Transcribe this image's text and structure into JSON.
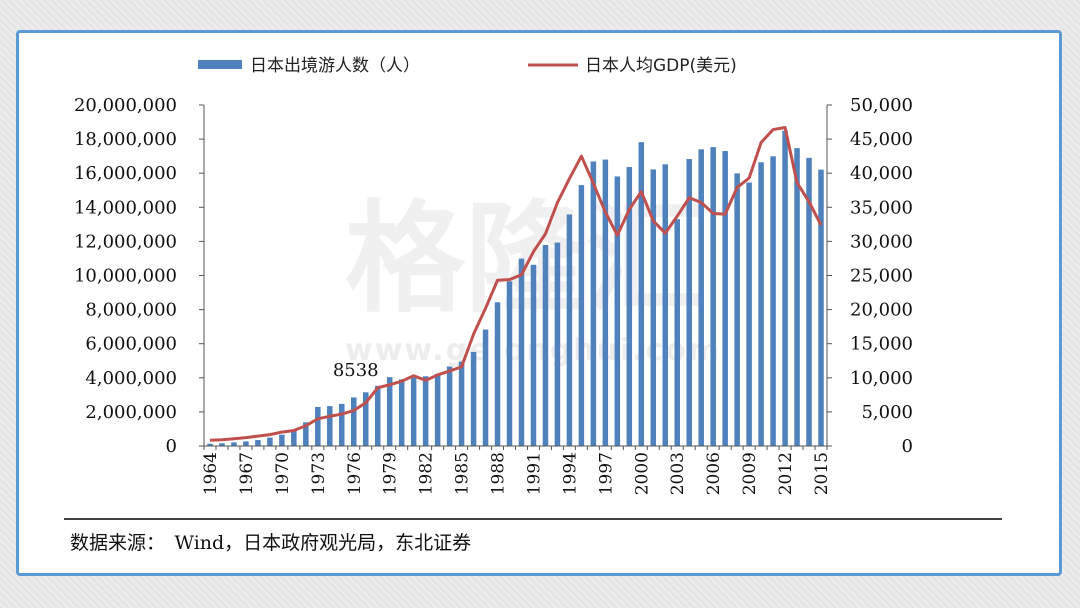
{
  "chart_data": {
    "type": "bar+line",
    "title": "",
    "legend": [
      {
        "name": "日本出境游人数（人）",
        "kind": "bar",
        "color": "#4f81bd"
      },
      {
        "name": "日本人均GDP(美元)",
        "kind": "line",
        "color": "#c0504d"
      }
    ],
    "x_start": 1964,
    "x_end": 2015,
    "x_tick_labels": [
      "1964",
      "1967",
      "1970",
      "1973",
      "1976",
      "1979",
      "1982",
      "1985",
      "1988",
      "1991",
      "1994",
      "1997",
      "2000",
      "2003",
      "2006",
      "2009",
      "2012",
      "2015"
    ],
    "y_left": {
      "min": 0,
      "max": 20000000,
      "ticks": [
        "0",
        "2,000,000",
        "4,000,000",
        "6,000,000",
        "8,000,000",
        "10,000,000",
        "12,000,000",
        "14,000,000",
        "16,000,000",
        "18,000,000",
        "20,000,000"
      ]
    },
    "y_right": {
      "min": 0,
      "max": 50000,
      "ticks": [
        "0",
        "5,000",
        "10,000",
        "15,000",
        "20,000",
        "25,000",
        "30,000",
        "35,000",
        "40,000",
        "45,000",
        "50,000"
      ]
    },
    "series": [
      {
        "name": "日本出境游人数（人）",
        "axis": "left",
        "values": [
          130000,
          160000,
          210000,
          270000,
          350000,
          490000,
          660000,
          960000,
          1390000,
          2290000,
          2340000,
          2470000,
          2850000,
          3150000,
          3530000,
          4040000,
          3910000,
          4010000,
          4090000,
          4230000,
          4660000,
          4950000,
          5520000,
          6830000,
          8430000,
          9660000,
          10990000,
          10630000,
          11790000,
          11930000,
          13580000,
          15300000,
          16690000,
          16800000,
          15810000,
          16360000,
          17820000,
          16220000,
          16520000,
          13300000,
          16830000,
          17400000,
          17530000,
          17300000,
          15990000,
          15450000,
          16640000,
          16990000,
          18490000,
          17470000,
          16900000,
          16210000
        ]
      },
      {
        "name": "日本人均GDP(美元)",
        "axis": "right",
        "values": [
          840,
          920,
          1060,
          1230,
          1450,
          1670,
          2040,
          2270,
          2970,
          3990,
          4350,
          4680,
          5200,
          6340,
          8540,
          8980,
          9500,
          10300,
          9630,
          10420,
          11000,
          11600,
          16400,
          20200,
          24300,
          24400,
          25100,
          28500,
          31100,
          35700,
          39200,
          42500,
          38500,
          34300,
          30900,
          34700,
          37300,
          33000,
          31200,
          33700,
          36400,
          35700,
          34100,
          34000,
          37900,
          39300,
          44500,
          46400,
          46700,
          38600,
          35800,
          32400
        ]
      }
    ],
    "annotations": [
      {
        "text": "8538",
        "year": 1978
      }
    ],
    "watermark": {
      "text_cn": "格隆汇",
      "text_url": "www.gelonghui.com"
    }
  },
  "source_line": "数据来源：　Wind，日本政府观光局，东北证券"
}
